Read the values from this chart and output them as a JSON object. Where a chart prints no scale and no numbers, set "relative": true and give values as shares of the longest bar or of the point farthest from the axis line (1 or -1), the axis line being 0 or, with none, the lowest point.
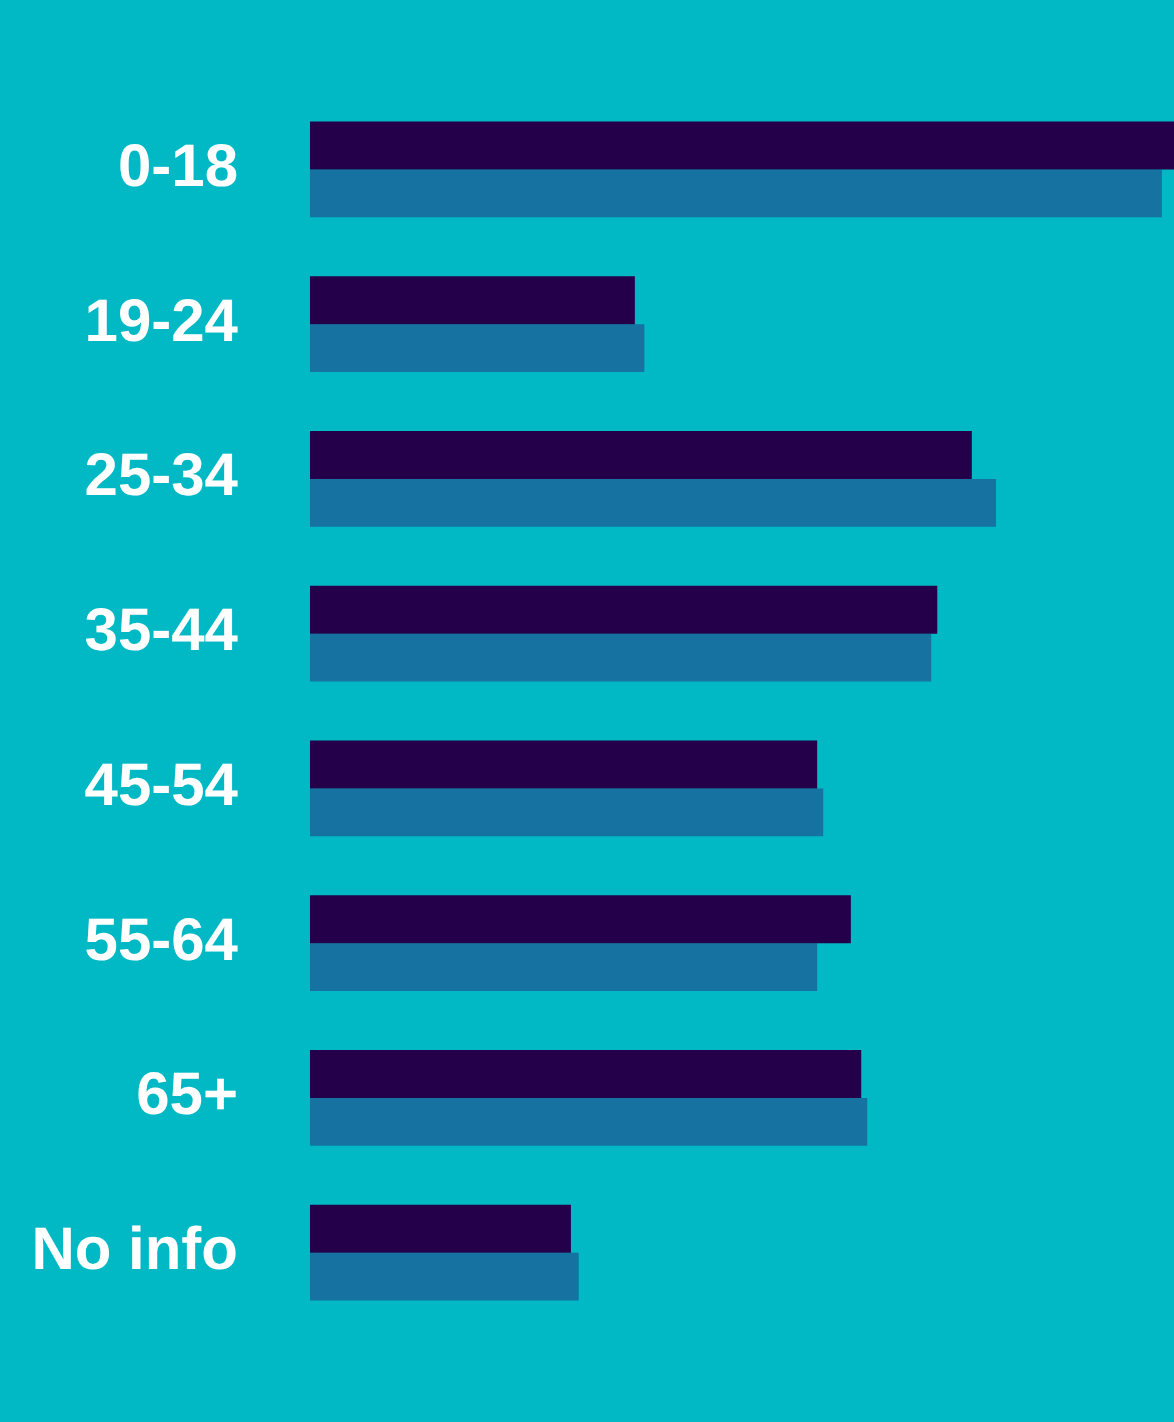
{
  "chart_data": {
    "type": "bar",
    "orientation": "horizontal",
    "relative": true,
    "categories": [
      "0-18",
      "19-24",
      "25-34",
      "35-44",
      "45-54",
      "55-64",
      "65+",
      "No info"
    ],
    "series": [
      {
        "color": "#24004a",
        "values": [
          1,
          0.376,
          0.766,
          0.726,
          0.587,
          0.626,
          0.638,
          0.302
        ]
      },
      {
        "color": "#1572a1",
        "values": [
          0.986,
          0.387,
          0.794,
          0.719,
          0.594,
          0.587,
          0.645,
          0.311
        ]
      }
    ]
  }
}
